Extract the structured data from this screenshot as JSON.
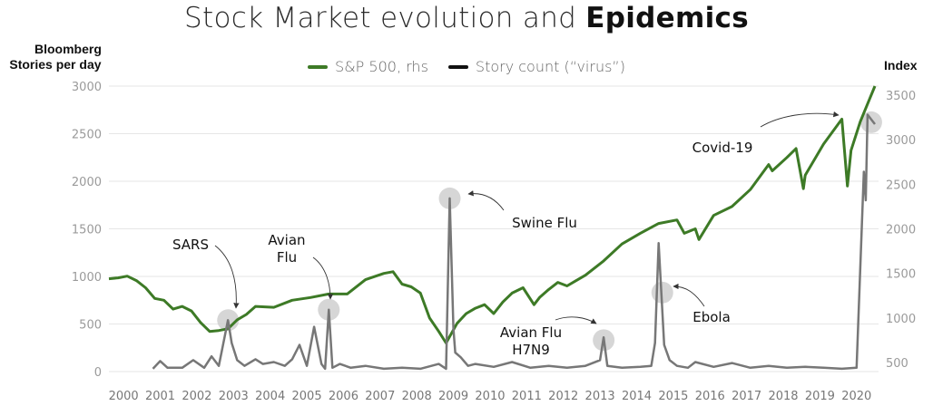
{
  "title_regular": "Stock Market evolution and ",
  "title_bold": "Epidemics",
  "left_axis_title_line1": "Bloomberg",
  "left_axis_title_line2": "Stories per day",
  "right_axis_title": "Index",
  "legend": [
    {
      "label": "S&P 500, rhs",
      "color": "#3d7a26"
    },
    {
      "label": "Story count (“virus”)",
      "color": "#111111"
    }
  ],
  "chart_data": {
    "type": "line",
    "title": "Stock Market evolution and Epidemics",
    "xlabel": "",
    "x_ticks": [
      "2000",
      "2001",
      "2002",
      "2003",
      "2004",
      "2005",
      "2006",
      "2007",
      "2008",
      "2009",
      "2010",
      "2011",
      "2012",
      "2013",
      "2014",
      "2015",
      "2016",
      "2017",
      "2018",
      "2019",
      "2020"
    ],
    "xlim": [
      2000,
      2021
    ],
    "y_left": {
      "label": "Bloomberg Stories per day",
      "ylim": [
        0,
        3000
      ],
      "ticks": [
        0,
        500,
        1000,
        1500,
        2000,
        2500,
        3000
      ]
    },
    "y_right": {
      "label": "Index",
      "ylim": [
        400,
        3600
      ],
      "ticks": [
        500,
        1000,
        1500,
        2000,
        2500,
        3000,
        3500
      ]
    },
    "grid": "horizontal",
    "legend_position": "top-center",
    "series": [
      {
        "name": "S&P 500, rhs",
        "axis": "right",
        "color": "#3d7a26",
        "x": [
          2000.0,
          2000.25,
          2000.5,
          2000.75,
          2001.0,
          2001.25,
          2001.5,
          2001.75,
          2002.0,
          2002.25,
          2002.5,
          2002.75,
          2003.0,
          2003.25,
          2003.5,
          2003.75,
          2004.0,
          2004.5,
          2005.0,
          2005.5,
          2006.0,
          2006.5,
          2007.0,
          2007.5,
          2007.75,
          2008.0,
          2008.25,
          2008.5,
          2008.75,
          2009.0,
          2009.2,
          2009.5,
          2009.75,
          2010.0,
          2010.25,
          2010.5,
          2010.75,
          2011.0,
          2011.3,
          2011.6,
          2011.75,
          2012.0,
          2012.25,
          2012.5,
          2012.75,
          2013.0,
          2013.5,
          2014.0,
          2014.5,
          2015.0,
          2015.5,
          2015.7,
          2016.0,
          2016.1,
          2016.5,
          2017.0,
          2017.5,
          2018.0,
          2018.1,
          2018.5,
          2018.75,
          2018.95,
          2019.0,
          2019.5,
          2020.0,
          2020.15,
          2020.25,
          2020.5,
          2020.75,
          2020.9
        ],
        "values": [
          1440,
          1450,
          1470,
          1420,
          1340,
          1220,
          1200,
          1100,
          1130,
          1080,
          950,
          850,
          860,
          880,
          980,
          1040,
          1130,
          1120,
          1200,
          1230,
          1270,
          1270,
          1430,
          1500,
          1520,
          1380,
          1350,
          1280,
          1000,
          850,
          720,
          940,
          1050,
          1110,
          1150,
          1050,
          1180,
          1280,
          1340,
          1150,
          1230,
          1320,
          1400,
          1360,
          1420,
          1480,
          1640,
          1830,
          1950,
          2060,
          2100,
          1950,
          2000,
          1880,
          2150,
          2250,
          2440,
          2720,
          2650,
          2800,
          2900,
          2450,
          2600,
          2950,
          3230,
          2480,
          2880,
          3200,
          3450,
          3600
        ]
      },
      {
        "name": "Story count (“virus”)",
        "axis": "left",
        "color": "#777777",
        "x": [
          2001.2,
          2001.4,
          2001.6,
          2002.0,
          2002.3,
          2002.6,
          2002.8,
          2003.0,
          2003.15,
          2003.25,
          2003.35,
          2003.5,
          2003.7,
          2004.0,
          2004.2,
          2004.5,
          2004.8,
          2005.0,
          2005.2,
          2005.4,
          2005.6,
          2005.8,
          2005.9,
          2006.0,
          2006.1,
          2006.3,
          2006.6,
          2007.0,
          2007.5,
          2008.0,
          2008.5,
          2009.0,
          2009.2,
          2009.3,
          2009.4,
          2009.45,
          2009.6,
          2009.8,
          2010.0,
          2010.5,
          2011.0,
          2011.5,
          2012.0,
          2012.5,
          2013.0,
          2013.4,
          2013.5,
          2013.6,
          2014.0,
          2014.5,
          2014.8,
          2014.9,
          2015.0,
          2015.15,
          2015.3,
          2015.5,
          2015.8,
          2016.0,
          2016.5,
          2017.0,
          2017.5,
          2018.0,
          2018.5,
          2019.0,
          2019.5,
          2020.0,
          2020.4,
          2020.6,
          2020.65,
          2020.7,
          2020.8,
          2020.9
        ],
        "values": [
          30,
          110,
          40,
          40,
          120,
          40,
          160,
          60,
          350,
          540,
          300,
          120,
          60,
          130,
          80,
          100,
          60,
          130,
          280,
          60,
          470,
          80,
          30,
          650,
          40,
          80,
          40,
          60,
          30,
          40,
          30,
          80,
          30,
          1820,
          450,
          200,
          150,
          60,
          80,
          50,
          100,
          40,
          60,
          40,
          60,
          120,
          360,
          60,
          40,
          50,
          60,
          300,
          1350,
          280,
          120,
          60,
          40,
          100,
          50,
          90,
          40,
          60,
          40,
          50,
          40,
          30,
          40,
          2100,
          1800,
          2700,
          2650,
          2600
        ]
      }
    ],
    "annotations": [
      {
        "text": "SARS",
        "x": 2003.25
      },
      {
        "text": "Avian",
        "x": 2006.0
      },
      {
        "text": "Flu",
        "x": 2006.0
      },
      {
        "text": "Swine Flu",
        "x": 2009.3
      },
      {
        "text": "Avian Flu",
        "x": 2013.5
      },
      {
        "text": "H7N9",
        "x": 2013.5
      },
      {
        "text": "Ebola",
        "x": 2015.1
      },
      {
        "text": "Covid-19",
        "x": 2020.8
      }
    ]
  }
}
